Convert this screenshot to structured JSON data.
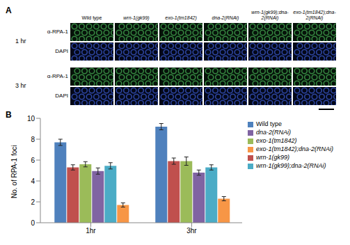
{
  "panel_a": {
    "label": "A",
    "columns": [
      "Wild type",
      "wrn-1(gk99)",
      "exo-1(tm1842)",
      "dna-2(RNAi)",
      "wrn-1(gk99);dna-2(RNAi)",
      "exo-1(tm1842);dna-2(RNAi)"
    ],
    "timepoints": [
      "1 hr",
      "3 hr"
    ],
    "rows": [
      "α-RPA-1",
      "DAPI"
    ]
  },
  "chart_data": {
    "panel_label": "B",
    "type": "bar",
    "categories": [
      "1hr",
      "3hr"
    ],
    "ylim": [
      0,
      10
    ],
    "yticks": [
      0,
      2,
      4,
      6,
      8,
      10
    ],
    "y_label": "No. of RPA-1 foci",
    "legend": "right",
    "grid": false,
    "series": [
      {
        "name": "Wild type",
        "color": "#4f81bd",
        "values": [
          7.7,
          9.2
        ],
        "errors": [
          0.3,
          0.3
        ]
      },
      {
        "name": "wrn-1(gk99)",
        "color": "#c0504d",
        "values": [
          5.3,
          5.9
        ],
        "errors": [
          0.25,
          0.3
        ]
      },
      {
        "name": "exo-1(tm1842)",
        "color": "#9bbb59",
        "values": [
          5.6,
          5.9
        ],
        "errors": [
          0.25,
          0.4
        ]
      },
      {
        "name": "dna-2(RNAi)",
        "color": "#8064a2",
        "values": [
          4.95,
          4.8
        ],
        "errors": [
          0.3,
          0.25
        ]
      },
      {
        "name": "wrn-1(gk99);dna-2(RNAi)",
        "color": "#4bacc6",
        "values": [
          5.45,
          5.3
        ],
        "errors": [
          0.3,
          0.25
        ]
      },
      {
        "name": "exo-1(tm1842);dna-2(RNAi)",
        "color": "#f79646",
        "values": [
          1.7,
          2.3
        ],
        "errors": [
          0.2,
          0.2
        ]
      }
    ]
  }
}
